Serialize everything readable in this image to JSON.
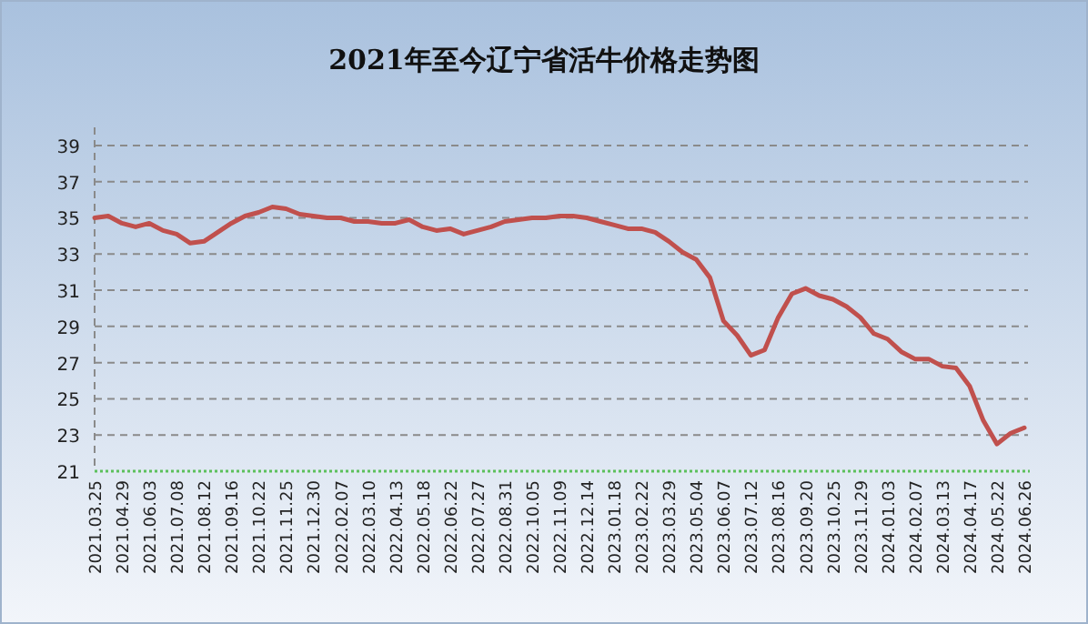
{
  "chart_data": {
    "type": "line",
    "title": "2021年至今辽宁省活牛价格走势图",
    "categories": [
      "2021.03.25",
      null,
      "2021.04.29",
      null,
      "2021.06.03",
      null,
      "2021.07.08",
      null,
      "2021.08.12",
      null,
      "2021.09.16",
      null,
      "2021.10.22",
      null,
      "2021.11.25",
      null,
      "2021.12.30",
      null,
      "2022.02.07",
      null,
      "2022.03.10",
      null,
      "2022.04.13",
      null,
      "2022.05.18",
      null,
      "2022.06.22",
      null,
      "2022.07.27",
      null,
      "2022.08.31",
      null,
      "2022.10.05",
      null,
      "2022.11.09",
      null,
      "2022.12.14",
      null,
      "2023.01.18",
      null,
      "2023.02.22",
      null,
      "2023.03.29",
      null,
      "2023.05.04",
      null,
      "2023.06.07",
      null,
      "2023.07.12",
      null,
      "2023.08.16",
      null,
      "2023.09.20",
      null,
      "2023.10.25",
      null,
      "2023.11.29",
      null,
      "2024.01.03",
      null,
      "2024.02.07",
      null,
      "2024.03.13",
      null,
      "2024.04.17",
      null,
      "2024.05.22",
      null,
      "2024.06.26"
    ],
    "series": [
      {
        "color": "#c0504d",
        "values": [
          35.0,
          35.1,
          34.7,
          34.5,
          34.7,
          34.3,
          34.1,
          33.6,
          33.7,
          34.2,
          34.7,
          35.1,
          35.3,
          35.6,
          35.5,
          35.2,
          35.1,
          35.0,
          35.0,
          34.8,
          34.8,
          34.7,
          34.7,
          34.9,
          34.5,
          34.3,
          34.4,
          34.1,
          34.3,
          34.5,
          34.8,
          34.9,
          35.0,
          35.0,
          35.1,
          35.1,
          35.0,
          34.8,
          34.6,
          34.4,
          34.4,
          34.2,
          33.7,
          33.1,
          32.7,
          31.7,
          29.3,
          28.5,
          27.4,
          27.7,
          29.5,
          30.8,
          31.1,
          30.7,
          30.5,
          30.1,
          29.5,
          28.6,
          28.3,
          27.6,
          27.2,
          27.2,
          26.8,
          26.7,
          25.7,
          23.8,
          22.5,
          23.1,
          23.4
        ]
      }
    ],
    "ylim": [
      21,
      40
    ],
    "yticks": [
      21,
      23,
      25,
      27,
      29,
      31,
      33,
      35,
      37,
      39
    ],
    "grid": "y"
  }
}
